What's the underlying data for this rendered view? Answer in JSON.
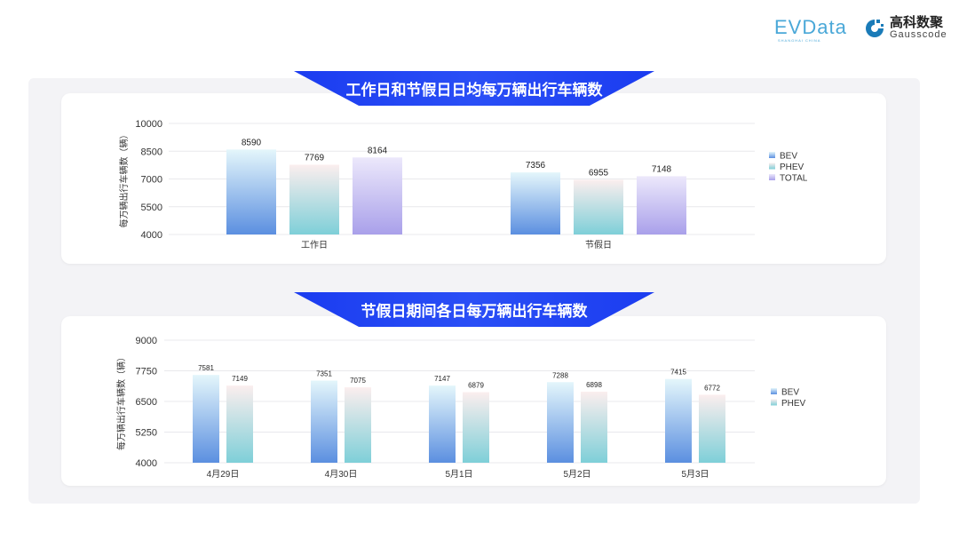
{
  "logos": {
    "evdata": "EVData",
    "evdata_sub": "SHANGHAI CHINA",
    "gauss_cn": "高科数聚",
    "gauss_en": "Gausscode"
  },
  "colors": {
    "banner": "#1b3cf0",
    "BEV": "#5b8fe0",
    "PHEV": "#7ecfd8",
    "TOTAL": "#a9a0ea"
  },
  "chart_data": [
    {
      "type": "bar",
      "title": "工作日和节假日日均每万辆出行车辆数",
      "ylabel": "每万辆出行车辆数（辆）",
      "ylim": [
        4000,
        10000
      ],
      "yticks": [
        4000,
        5500,
        7000,
        8500,
        10000
      ],
      "categories": [
        "工作日",
        "节假日"
      ],
      "grid": true,
      "legend": "right",
      "series": [
        {
          "name": "BEV",
          "values": [
            8590,
            7356
          ]
        },
        {
          "name": "PHEV",
          "values": [
            7769,
            6955
          ]
        },
        {
          "name": "TOTAL",
          "values": [
            8164,
            7148
          ]
        }
      ]
    },
    {
      "type": "bar",
      "title": "节假日期间各日每万辆出行车辆数",
      "ylabel": "每万辆出行车辆数（辆）",
      "ylim": [
        4000,
        9000
      ],
      "yticks": [
        4000,
        5250,
        6500,
        7750,
        9000
      ],
      "categories": [
        "4月29日",
        "4月30日",
        "5月1日",
        "5月2日",
        "5月3日"
      ],
      "grid": true,
      "legend": "right",
      "series": [
        {
          "name": "BEV",
          "values": [
            7581,
            7351,
            7147,
            7288,
            7415
          ]
        },
        {
          "name": "PHEV",
          "values": [
            7149,
            7075,
            6879,
            6898,
            6772
          ]
        }
      ]
    }
  ]
}
